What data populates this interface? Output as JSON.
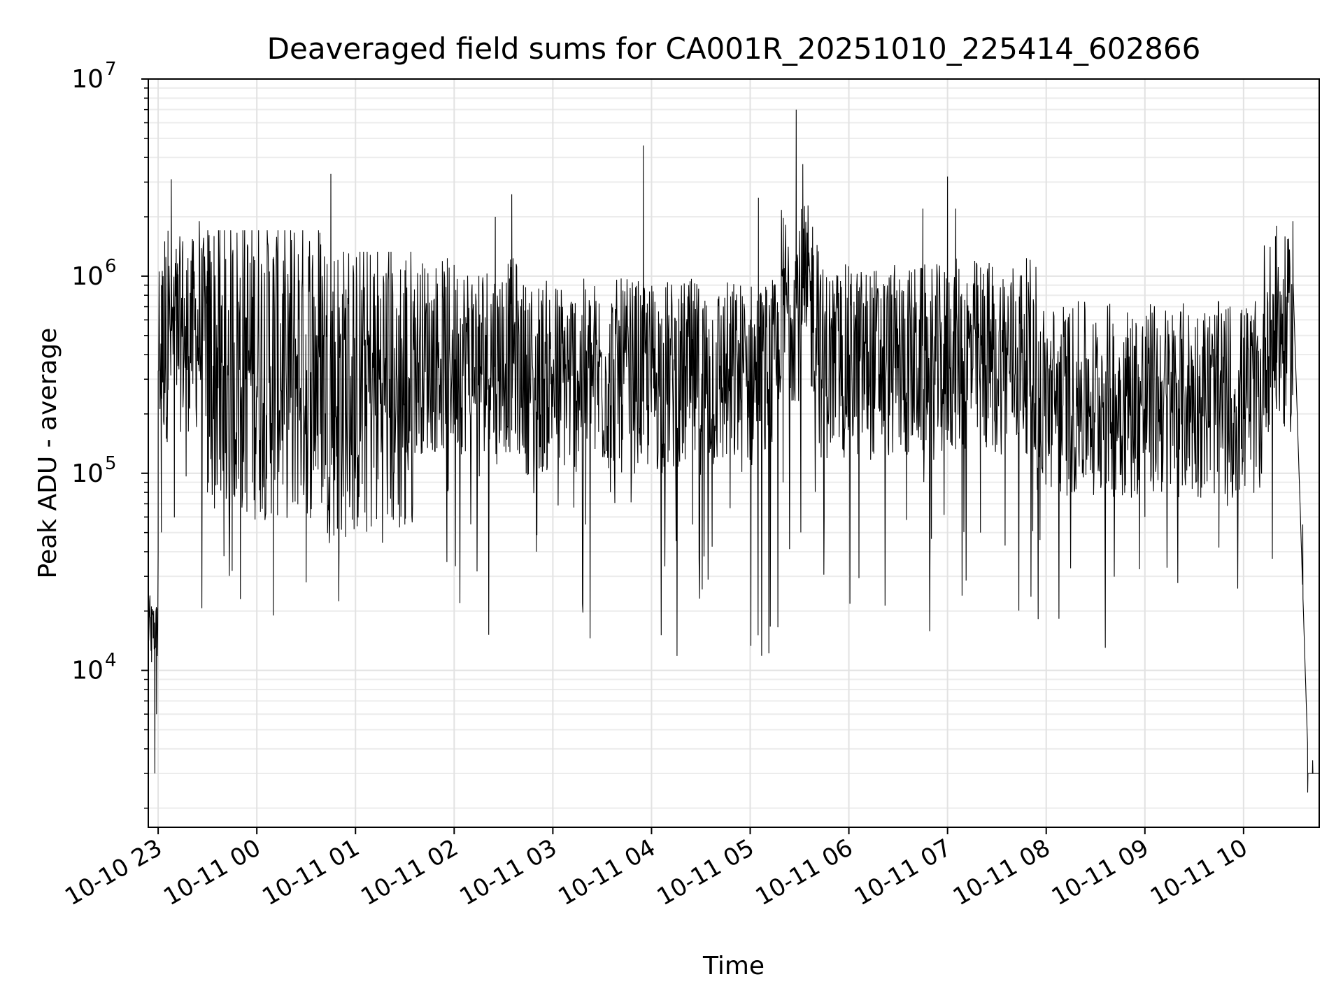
{
  "chart_data": {
    "type": "line",
    "title": "Deaveraged field sums for CA001R_20251010_225414_602866",
    "xlabel": "Time",
    "ylabel": "Peak ADU - average",
    "yscale": "log",
    "ylim": [
      1600,
      10000000
    ],
    "xlim": [
      "2025-10-10 22:54",
      "2025-10-11 10:46"
    ],
    "x_ticks": [
      {
        "x": "2025-10-10 23:00",
        "label": "10-10 23"
      },
      {
        "x": "2025-10-11 00:00",
        "label": "10-11 00"
      },
      {
        "x": "2025-10-11 01:00",
        "label": "10-11 01"
      },
      {
        "x": "2025-10-11 02:00",
        "label": "10-11 02"
      },
      {
        "x": "2025-10-11 03:00",
        "label": "10-11 03"
      },
      {
        "x": "2025-10-11 04:00",
        "label": "10-11 04"
      },
      {
        "x": "2025-10-11 05:00",
        "label": "10-11 05"
      },
      {
        "x": "2025-10-11 06:00",
        "label": "10-11 06"
      },
      {
        "x": "2025-10-11 07:00",
        "label": "10-11 07"
      },
      {
        "x": "2025-10-11 08:00",
        "label": "10-11 08"
      },
      {
        "x": "2025-10-11 09:00",
        "label": "10-11 09"
      },
      {
        "x": "2025-10-11 10:00",
        "label": "10-11 10"
      }
    ],
    "y_ticks": [
      {
        "value": 10000,
        "base": "10",
        "exp": "4"
      },
      {
        "value": 100000,
        "base": "10",
        "exp": "5"
      },
      {
        "value": 1000000,
        "base": "10",
        "exp": "6"
      },
      {
        "value": 10000000,
        "base": "10",
        "exp": "7"
      }
    ],
    "grid": true,
    "line_color": "#000000",
    "series": [
      {
        "points": [
          [
            "2025-10-10 22:54",
            20000
          ],
          [
            "2025-10-10 22:55",
            24000
          ],
          [
            "2025-10-10 22:56",
            11000
          ],
          [
            "2025-10-10 22:57",
            19000
          ],
          [
            "2025-10-10 22:58",
            3000
          ],
          [
            "2025-10-10 22:59",
            6000
          ],
          [
            "2025-10-10 23:00",
            40000
          ],
          [
            "2025-10-10 23:01",
            300000
          ],
          [
            "2025-10-10 23:02",
            900000
          ],
          [
            "2025-10-10 23:04",
            1500000
          ],
          [
            "2025-10-10 23:06",
            1700000
          ],
          [
            "2025-10-10 23:08",
            3100000
          ],
          [
            "2025-10-10 23:10",
            700000
          ],
          [
            "2025-10-10 23:12",
            350000
          ],
          [
            "2025-10-10 23:15",
            1500000
          ],
          [
            "2025-10-10 23:20",
            1200000
          ],
          [
            "2025-10-10 23:25",
            1900000
          ],
          [
            "2025-10-10 23:30",
            80000
          ],
          [
            "2025-10-10 23:40",
            38000
          ],
          [
            "2025-10-10 23:45",
            32000
          ],
          [
            "2025-10-10 23:50",
            23000
          ],
          [
            "2025-10-11 00:10",
            19000
          ],
          [
            "2025-10-11 00:30",
            28000
          ],
          [
            "2025-10-11 00:45",
            3300000
          ],
          [
            "2025-10-11 00:50",
            40000
          ],
          [
            "2025-10-11 01:30",
            55000
          ],
          [
            "2025-10-11 02:25",
            2000000
          ],
          [
            "2025-10-11 02:35",
            2600000
          ],
          [
            "2025-10-11 02:50",
            40000
          ],
          [
            "2025-10-11 03:20",
            55000
          ],
          [
            "2025-10-11 03:55",
            4600000
          ],
          [
            "2025-10-11 04:25",
            55000
          ],
          [
            "2025-10-11 05:05",
            2500000
          ],
          [
            "2025-10-11 05:20",
            90000
          ],
          [
            "2025-10-11 05:28",
            7000000
          ],
          [
            "2025-10-11 05:32",
            3700000
          ],
          [
            "2025-10-11 05:45",
            60000
          ],
          [
            "2025-10-11 06:35",
            58000
          ],
          [
            "2025-10-11 06:45",
            2200000
          ],
          [
            "2025-10-11 07:00",
            3200000
          ],
          [
            "2025-10-11 07:05",
            2200000
          ],
          [
            "2025-10-11 07:20",
            50000
          ],
          [
            "2025-10-11 07:35",
            43000
          ],
          [
            "2025-10-11 09:00",
            60000
          ],
          [
            "2025-10-11 09:45",
            42000
          ],
          [
            "2025-10-11 10:20",
            1800000
          ],
          [
            "2025-10-11 10:30",
            1900000
          ],
          [
            "2025-10-11 10:36",
            55000
          ],
          [
            "2025-10-11 10:39",
            2400
          ],
          [
            "2025-10-11 10:42",
            3500
          ],
          [
            "2025-10-11 10:46",
            2200
          ]
        ]
      }
    ]
  }
}
